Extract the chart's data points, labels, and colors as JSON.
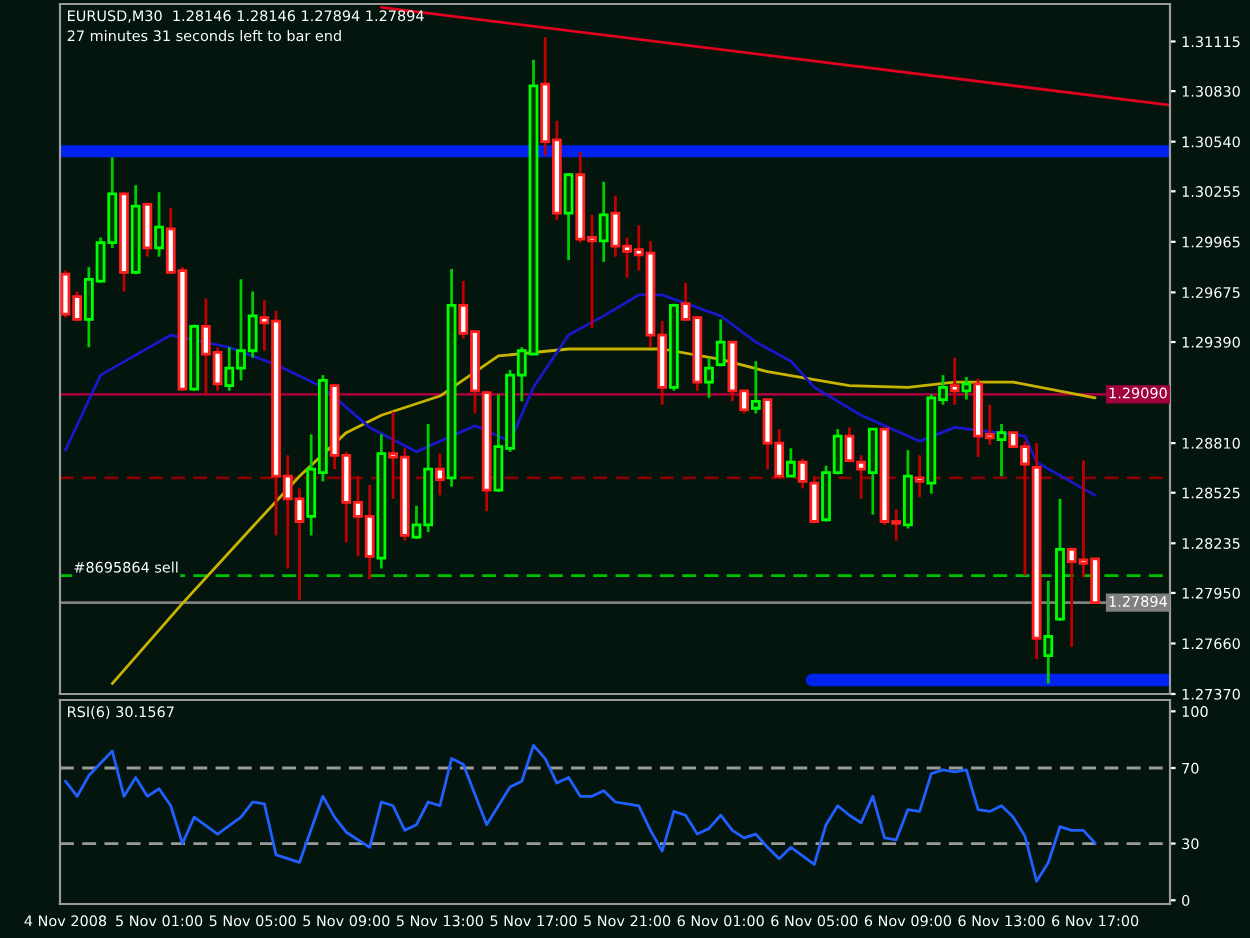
{
  "chart_data": [
    {
      "type": "candlestick",
      "title": "EURUSD,M30  1.28146 1.28146 1.27894 1.27894",
      "subtitle": "27 minutes 31 seconds left to bar end",
      "x": [
        "2008-11-04T21:00",
        "2008-11-04T21:30",
        "2008-11-04T22:00",
        "2008-11-04T22:30",
        "2008-11-04T23:00",
        "2008-11-04T23:30",
        "2008-11-05T00:00",
        "2008-11-05T00:30",
        "2008-11-05T01:00",
        "2008-11-05T01:30",
        "2008-11-05T02:00",
        "2008-11-05T02:30",
        "2008-11-05T03:00",
        "2008-11-05T03:30",
        "2008-11-05T04:00",
        "2008-11-05T04:30",
        "2008-11-05T05:00",
        "2008-11-05T05:30",
        "2008-11-05T06:00",
        "2008-11-05T06:30",
        "2008-11-05T07:00",
        "2008-11-05T07:30",
        "2008-11-05T08:00",
        "2008-11-05T08:30",
        "2008-11-05T09:00",
        "2008-11-05T09:30",
        "2008-11-05T10:00",
        "2008-11-05T10:30",
        "2008-11-05T11:00",
        "2008-11-05T11:30",
        "2008-11-05T12:00",
        "2008-11-05T12:30",
        "2008-11-05T13:00",
        "2008-11-05T13:30",
        "2008-11-05T14:00",
        "2008-11-05T14:30",
        "2008-11-05T15:00",
        "2008-11-05T15:30",
        "2008-11-05T16:00",
        "2008-11-05T16:30",
        "2008-11-05T17:00",
        "2008-11-05T17:30",
        "2008-11-05T18:00",
        "2008-11-05T18:30",
        "2008-11-05T19:00",
        "2008-11-05T19:30",
        "2008-11-05T20:00",
        "2008-11-05T20:30",
        "2008-11-05T21:00",
        "2008-11-05T21:30",
        "2008-11-05T22:00",
        "2008-11-05T22:30",
        "2008-11-05T23:00",
        "2008-11-05T23:30",
        "2008-11-06T00:00",
        "2008-11-06T00:30",
        "2008-11-06T01:00",
        "2008-11-06T01:30",
        "2008-11-06T02:00",
        "2008-11-06T02:30",
        "2008-11-06T03:00",
        "2008-11-06T03:30",
        "2008-11-06T04:00",
        "2008-11-06T04:30",
        "2008-11-06T05:00",
        "2008-11-06T05:30",
        "2008-11-06T06:00",
        "2008-11-06T06:30",
        "2008-11-06T07:00",
        "2008-11-06T07:30",
        "2008-11-06T08:00",
        "2008-11-06T08:30",
        "2008-11-06T09:00",
        "2008-11-06T09:30",
        "2008-11-06T10:00",
        "2008-11-06T10:30",
        "2008-11-06T11:00",
        "2008-11-06T11:30",
        "2008-11-06T12:00",
        "2008-11-06T12:30",
        "2008-11-06T13:00",
        "2008-11-06T13:30",
        "2008-11-06T14:00",
        "2008-11-06T14:30",
        "2008-11-06T15:00",
        "2008-11-06T15:30",
        "2008-11-06T16:00",
        "2008-11-06T16:30",
        "2008-11-06T17:00"
      ],
      "ohlc": [
        [
          1.2978,
          1.298,
          1.2953,
          1.2955
        ],
        [
          1.2965,
          1.2968,
          1.2951,
          1.2952
        ],
        [
          1.2952,
          1.2982,
          1.2936,
          1.2975
        ],
        [
          1.2974,
          1.2999,
          1.2973,
          1.2996
        ],
        [
          1.2996,
          1.3045,
          1.2993,
          1.3024
        ],
        [
          1.3024,
          1.3025,
          1.2968,
          1.2979
        ],
        [
          1.2979,
          1.3029,
          1.2978,
          1.3017
        ],
        [
          1.3018,
          1.3019,
          1.2988,
          1.2993
        ],
        [
          1.2993,
          1.3025,
          1.2988,
          1.3005
        ],
        [
          1.3004,
          1.3016,
          1.2978,
          1.2979
        ],
        [
          1.298,
          1.2982,
          1.2911,
          1.2912
        ],
        [
          1.2912,
          1.2949,
          1.2911,
          1.2948
        ],
        [
          1.2948,
          1.2964,
          1.2909,
          1.2932
        ],
        [
          1.2933,
          1.2936,
          1.2911,
          1.2915
        ],
        [
          1.2914,
          1.2936,
          1.2911,
          1.2924
        ],
        [
          1.2924,
          1.2975,
          1.2917,
          1.2934
        ],
        [
          1.2934,
          1.2968,
          1.293,
          1.2954
        ],
        [
          1.2953,
          1.2963,
          1.2934,
          1.295
        ],
        [
          1.2951,
          1.2957,
          1.2828,
          1.2862
        ],
        [
          1.2862,
          1.2874,
          1.2809,
          1.2849
        ],
        [
          1.2849,
          1.2855,
          1.2791,
          1.2836
        ],
        [
          1.2839,
          1.2886,
          1.2828,
          1.2866
        ],
        [
          1.2864,
          1.292,
          1.2859,
          1.2917
        ],
        [
          1.2914,
          1.2915,
          1.2866,
          1.2874
        ],
        [
          1.2874,
          1.2876,
          1.2824,
          1.2847
        ],
        [
          1.2847,
          1.2862,
          1.2816,
          1.2839
        ],
        [
          1.2839,
          1.2857,
          1.2803,
          1.2816
        ],
        [
          1.2815,
          1.2886,
          1.2809,
          1.2875
        ],
        [
          1.2875,
          1.2899,
          1.2849,
          1.2873
        ],
        [
          1.2873,
          1.2878,
          1.2825,
          1.2828
        ],
        [
          1.2827,
          1.2845,
          1.2826,
          1.2834
        ],
        [
          1.2834,
          1.2892,
          1.283,
          1.2866
        ],
        [
          1.2866,
          1.2875,
          1.2851,
          1.286
        ],
        [
          1.2861,
          1.2981,
          1.2856,
          1.296
        ],
        [
          1.296,
          1.2974,
          1.2941,
          1.2944
        ],
        [
          1.2945,
          1.2945,
          1.2898,
          1.2911
        ],
        [
          1.291,
          1.2911,
          1.2842,
          1.2854
        ],
        [
          1.2854,
          1.2909,
          1.2853,
          1.2879
        ],
        [
          1.2878,
          1.2923,
          1.2876,
          1.292
        ],
        [
          1.292,
          1.2936,
          1.2905,
          1.2934
        ],
        [
          1.2932,
          1.3101,
          1.2932,
          1.3086
        ],
        [
          1.3087,
          1.3114,
          1.3046,
          1.3054
        ],
        [
          1.3055,
          1.3066,
          1.3009,
          1.3013
        ],
        [
          1.3013,
          1.3036,
          1.2986,
          1.3035
        ],
        [
          1.3035,
          1.3048,
          1.2996,
          1.2998
        ],
        [
          1.2999,
          1.3012,
          1.2947,
          1.2997
        ],
        [
          1.2997,
          1.3031,
          1.2985,
          1.3012
        ],
        [
          1.3013,
          1.3023,
          1.2988,
          1.2994
        ],
        [
          1.2994,
          1.2999,
          1.2976,
          1.2991
        ],
        [
          1.2992,
          1.3006,
          1.298,
          1.2989
        ],
        [
          1.299,
          1.2997,
          1.2936,
          1.2943
        ],
        [
          1.2943,
          1.2951,
          1.2903,
          1.2913
        ],
        [
          1.2913,
          1.2961,
          1.2911,
          1.296
        ],
        [
          1.2961,
          1.2973,
          1.2951,
          1.2952
        ],
        [
          1.2953,
          1.2954,
          1.2911,
          1.2916
        ],
        [
          1.2916,
          1.293,
          1.2907,
          1.2924
        ],
        [
          1.2926,
          1.2952,
          1.2925,
          1.2939
        ],
        [
          1.2939,
          1.2939,
          1.2905,
          1.2911
        ],
        [
          1.2911,
          1.2911,
          1.2898,
          1.29
        ],
        [
          1.2901,
          1.2928,
          1.2898,
          1.2905
        ],
        [
          1.2906,
          1.2906,
          1.2866,
          1.2881
        ],
        [
          1.2881,
          1.2889,
          1.2861,
          1.2862
        ],
        [
          1.2862,
          1.2878,
          1.2862,
          1.287
        ],
        [
          1.287,
          1.2872,
          1.2855,
          1.2859
        ],
        [
          1.2858,
          1.2862,
          1.2835,
          1.2836
        ],
        [
          1.2837,
          1.2868,
          1.2836,
          1.2864
        ],
        [
          1.2864,
          1.2889,
          1.2863,
          1.2885
        ],
        [
          1.2885,
          1.289,
          1.287,
          1.2871
        ],
        [
          1.287,
          1.2874,
          1.2849,
          1.2866
        ],
        [
          1.2864,
          1.2889,
          1.284,
          1.2889
        ],
        [
          1.2889,
          1.2889,
          1.2834,
          1.2836
        ],
        [
          1.2836,
          1.2843,
          1.2825,
          1.2835
        ],
        [
          1.2834,
          1.2877,
          1.2832,
          1.2862
        ],
        [
          1.2861,
          1.2874,
          1.285,
          1.2859
        ],
        [
          1.2858,
          1.2909,
          1.2852,
          1.2907
        ],
        [
          1.2906,
          1.292,
          1.2903,
          1.2913
        ],
        [
          1.2914,
          1.293,
          1.2903,
          1.2911
        ],
        [
          1.2911,
          1.2919,
          1.2906,
          1.2915
        ],
        [
          1.2915,
          1.2918,
          1.2873,
          1.2885
        ],
        [
          1.2886,
          1.2903,
          1.288,
          1.2884
        ],
        [
          1.2883,
          1.2892,
          1.2862,
          1.2887
        ],
        [
          1.2887,
          1.2887,
          1.2878,
          1.2879
        ],
        [
          1.2879,
          1.2882,
          1.2805,
          1.2869
        ],
        [
          1.2867,
          1.2881,
          1.2757,
          1.2769
        ],
        [
          1.2759,
          1.2802,
          1.2743,
          1.277
        ],
        [
          1.278,
          1.2849,
          1.2779,
          1.282
        ],
        [
          1.282,
          1.2821,
          1.2764,
          1.2813
        ],
        [
          1.2814,
          1.2871,
          1.2804,
          1.2812
        ],
        [
          1.28146,
          1.28146,
          1.27894,
          1.27894
        ]
      ],
      "series": [
        {
          "type": "line",
          "color": "#c8b400",
          "x": [
            "2008-11-04T23:00",
            "2008-11-05T02:00",
            "2008-11-05T05:00",
            "2008-11-05T07:00",
            "2008-11-05T09:00",
            "2008-11-05T10:30",
            "2008-11-05T13:00",
            "2008-11-05T15:30",
            "2008-11-05T18:30",
            "2008-11-05T22:30",
            "2008-11-06T01:00",
            "2008-11-06T03:00",
            "2008-11-06T06:30",
            "2008-11-06T09:00",
            "2008-11-06T11:00",
            "2008-11-06T13:30",
            "2008-11-06T17:00"
          ],
          "values": [
            1.2743,
            1.2789,
            1.2833,
            1.2862,
            1.2887,
            1.2897,
            1.2908,
            1.2931,
            1.2935,
            1.2935,
            1.2929,
            1.2922,
            1.2914,
            1.2913,
            1.2916,
            1.2916,
            1.2907
          ]
        },
        {
          "type": "line",
          "color": "#1818c8",
          "x": [
            "2008-11-04T21:00",
            "2008-11-04T22:30",
            "2008-11-05T01:30",
            "2008-11-05T04:00",
            "2008-11-05T06:00",
            "2008-11-05T08:00",
            "2008-11-05T10:00",
            "2008-11-05T12:00",
            "2008-11-05T13:30",
            "2008-11-05T14:30",
            "2008-11-05T16:00",
            "2008-11-05T17:00",
            "2008-11-05T18:30",
            "2008-11-05T20:00",
            "2008-11-05T21:30",
            "2008-11-05T22:30",
            "2008-11-06T01:00",
            "2008-11-06T02:30",
            "2008-11-06T04:00",
            "2008-11-06T05:00",
            "2008-11-06T07:00",
            "2008-11-06T09:30",
            "2008-11-06T11:00",
            "2008-11-06T14:00",
            "2008-11-06T14:30",
            "2008-11-06T17:00"
          ],
          "values": [
            1.2877,
            1.292,
            1.2943,
            1.2936,
            1.2926,
            1.2913,
            1.289,
            1.2876,
            1.2885,
            1.2891,
            1.2882,
            1.2913,
            1.2943,
            1.2954,
            1.2966,
            1.2966,
            1.2954,
            1.2939,
            1.2928,
            1.2913,
            1.2897,
            1.2882,
            1.289,
            1.2885,
            1.287,
            1.2851
          ]
        },
        {
          "type": "line",
          "color": "#e00020",
          "x": [
            "2008-11-05T10:30",
            "2008-11-06T20:12"
          ],
          "values": [
            1.3131,
            1.3075
          ]
        },
        {
          "type": "line",
          "color": "#0022ee",
          "x": [
            "2008-11-06T04:54",
            "2008-11-06T20:12"
          ],
          "values": [
            1.2745,
            1.2745
          ]
        }
      ],
      "bands": [
        {
          "axis": "y",
          "from": 1.3045,
          "to": 1.3052,
          "color": "#0022ee"
        }
      ],
      "ref_lines": [
        {
          "axis": "y",
          "value": 1.2909,
          "label": "1.29090",
          "color": "#a0003c",
          "line_style": "solid"
        },
        {
          "axis": "y",
          "value": 1.2861,
          "color": "#8b0000",
          "line_style": "dashed"
        },
        {
          "axis": "y",
          "value": 1.2805,
          "label": "#8695864 sell",
          "color": "#00c000",
          "line_style": "dashed"
        },
        {
          "axis": "y",
          "value": 1.27894,
          "label": "1.27894",
          "color": "#808080",
          "line_style": "solid"
        }
      ],
      "xlim": [
        "2008-11-04T20:46",
        "2008-11-06T20:12"
      ],
      "ylim": [
        1.2737,
        1.3133
      ],
      "yticks": [
        1.31115,
        {
          "value": 1.3083,
          "label": "1.30830"
        },
        {
          "value": 1.3054,
          "label": "1.30540"
        },
        1.30255,
        1.29965,
        1.29675,
        {
          "value": 1.2939,
          "label": "1.29390"
        },
        {
          "value": 1.2881,
          "label": "1.28810"
        },
        1.28525,
        1.28235,
        {
          "value": 1.2795,
          "label": "1.27950"
        },
        {
          "value": 1.2766,
          "label": "1.27660"
        },
        {
          "value": 1.2737,
          "label": "1.27370"
        }
      ],
      "tick_labels": "y"
    },
    {
      "type": "line",
      "title": "RSI(6) 30.1567",
      "series": [
        {
          "type": "line",
          "color": "#2060ff",
          "x": [
            "2008-11-04T21:00",
            "2008-11-04T21:30",
            "2008-11-04T22:00",
            "2008-11-04T23:00",
            "2008-11-04T23:30",
            "2008-11-05T00:00",
            "2008-11-05T00:30",
            "2008-11-05T01:00",
            "2008-11-05T01:30",
            "2008-11-05T02:00",
            "2008-11-05T02:30",
            "2008-11-05T03:30",
            "2008-11-05T04:30",
            "2008-11-05T05:00",
            "2008-11-05T05:30",
            "2008-11-05T06:00",
            "2008-11-05T07:00",
            "2008-11-05T08:00",
            "2008-11-05T08:30",
            "2008-11-05T09:00",
            "2008-11-05T10:00",
            "2008-11-05T10:30",
            "2008-11-05T11:00",
            "2008-11-05T11:30",
            "2008-11-05T12:00",
            "2008-11-05T12:30",
            "2008-11-05T13:00",
            "2008-11-05T13:30",
            "2008-11-05T14:00",
            "2008-11-05T15:00",
            "2008-11-05T15:30",
            "2008-11-05T16:00",
            "2008-11-05T16:30",
            "2008-11-05T17:00",
            "2008-11-05T17:30",
            "2008-11-05T18:00",
            "2008-11-05T18:30",
            "2008-11-05T19:00",
            "2008-11-05T19:30",
            "2008-11-05T20:00",
            "2008-11-05T20:30",
            "2008-11-05T21:00",
            "2008-11-05T21:30",
            "2008-11-05T22:00",
            "2008-11-05T22:30",
            "2008-11-05T23:00",
            "2008-11-05T23:30",
            "2008-11-06T00:00",
            "2008-11-06T00:30",
            "2008-11-06T01:00",
            "2008-11-06T01:30",
            "2008-11-06T02:00",
            "2008-11-06T02:30",
            "2008-11-06T03:00",
            "2008-11-06T03:30",
            "2008-11-06T04:00",
            "2008-11-06T05:00",
            "2008-11-06T05:30",
            "2008-11-06T06:00",
            "2008-11-06T06:30",
            "2008-11-06T07:00",
            "2008-11-06T07:30",
            "2008-11-06T08:00",
            "2008-11-06T08:30",
            "2008-11-06T09:00",
            "2008-11-06T09:30",
            "2008-11-06T10:00",
            "2008-11-06T10:30",
            "2008-11-06T11:00",
            "2008-11-06T11:30",
            "2008-11-06T12:00",
            "2008-11-06T12:30",
            "2008-11-06T13:00",
            "2008-11-06T13:30",
            "2008-11-06T14:00",
            "2008-11-06T14:30",
            "2008-11-06T15:00",
            "2008-11-06T15:30",
            "2008-11-06T16:00",
            "2008-11-06T16:30",
            "2008-11-06T17:00"
          ],
          "values": [
            63,
            55,
            66,
            79,
            55,
            65,
            55,
            59,
            50,
            30,
            44,
            35,
            44,
            52,
            51,
            24,
            20,
            55,
            44,
            36,
            28,
            52,
            50,
            37,
            40,
            52,
            50,
            75,
            72,
            40,
            50,
            60,
            63,
            82,
            75,
            62,
            65,
            55,
            55,
            58,
            52,
            51,
            50,
            37,
            26,
            47,
            45,
            35,
            38,
            45,
            37,
            33,
            35,
            28,
            22,
            28,
            19,
            40,
            50,
            45,
            41,
            55,
            33,
            32,
            48,
            47,
            67,
            69,
            68,
            69,
            48,
            47,
            50,
            44,
            34,
            10,
            20,
            39,
            37,
            37,
            30.1567
          ]
        }
      ],
      "ref_lines": [
        {
          "axis": "y",
          "value": 70,
          "color": "#9a9a9a",
          "line_style": "dashed"
        },
        {
          "axis": "y",
          "value": 30,
          "color": "#9a9a9a",
          "line_style": "dashed"
        }
      ],
      "xlim": [
        "2008-11-04T20:46",
        "2008-11-06T20:12"
      ],
      "ylim": [
        -2,
        106
      ],
      "xticks": [
        {
          "value": "2008-11-04T21:00",
          "label": "4 Nov 2008"
        },
        {
          "value": "2008-11-05T01:00",
          "label": "5 Nov 01:00"
        },
        {
          "value": "2008-11-05T05:00",
          "label": "5 Nov 05:00"
        },
        {
          "value": "2008-11-05T09:00",
          "label": "5 Nov 09:00"
        },
        {
          "value": "2008-11-05T13:00",
          "label": "5 Nov 13:00"
        },
        {
          "value": "2008-11-05T17:00",
          "label": "5 Nov 17:00"
        },
        {
          "value": "2008-11-05T21:00",
          "label": "5 Nov 21:00"
        },
        {
          "value": "2008-11-06T01:00",
          "label": "6 Nov 01:00"
        },
        {
          "value": "2008-11-06T05:00",
          "label": "6 Nov 05:00"
        },
        {
          "value": "2008-11-06T09:00",
          "label": "6 Nov 09:00"
        },
        {
          "value": "2008-11-06T13:00",
          "label": "6 Nov 13:00"
        },
        {
          "value": "2008-11-06T17:00",
          "label": "6 Nov 17:00"
        }
      ],
      "yticks": [
        0,
        30,
        70,
        100
      ]
    }
  ]
}
